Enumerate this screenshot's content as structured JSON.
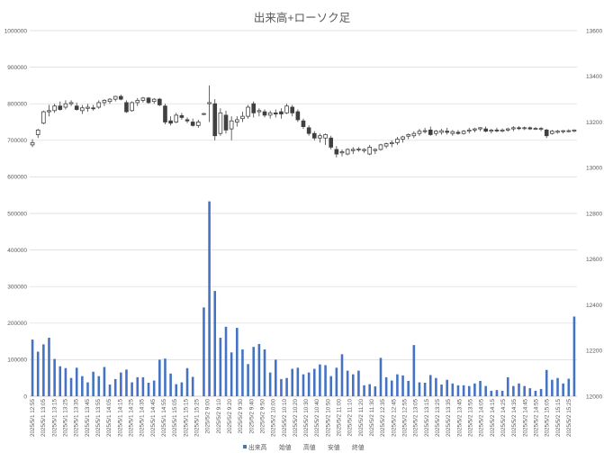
{
  "chart_data": {
    "type": "bar+candlestick",
    "title": "出来高+ローソク足",
    "left_axis": {
      "min": 0,
      "max": 1000000,
      "step": 100000,
      "ticks": [
        "0",
        "100000",
        "200000",
        "300000",
        "400000",
        "500000",
        "600000",
        "700000",
        "800000",
        "900000",
        "1000000"
      ]
    },
    "right_axis": {
      "min": 12000,
      "max": 13600,
      "step": 200,
      "ticks": [
        "12000",
        "12200",
        "12400",
        "12600",
        "12800",
        "13000",
        "13200",
        "13400",
        "13600"
      ]
    },
    "grid": true,
    "legend_position": "bottom",
    "legend": [
      "出来高",
      "始値",
      "高値",
      "安値",
      "終値"
    ],
    "colors": {
      "volume": "#4472C4",
      "candle": "#404040",
      "grid": "#D9D9D9",
      "text": "#595959"
    },
    "x_labels": [
      "2025/5/1 12:55",
      "2025/5/1 13:05",
      "2025/5/1 13:15",
      "2025/5/1 13:25",
      "2025/5/1 13:35",
      "2025/5/1 13:45",
      "2025/5/1 13:55",
      "2025/5/1 14:05",
      "2025/5/1 14:15",
      "2025/5/1 14:25",
      "2025/5/1 14:35",
      "2025/5/1 14:45",
      "2025/5/1 14:55",
      "2025/5/1 15:05",
      "2025/5/1 15:15",
      "2025/5/1 15:25",
      "2025/5/2 9:00",
      "2025/5/2 9:10",
      "2025/5/2 9:20",
      "2025/5/2 9:30",
      "2025/5/2 9:40",
      "2025/5/2 9:50",
      "2025/5/2 10:00",
      "2025/5/2 10:10",
      "2025/5/2 10:20",
      "2025/5/2 10:30",
      "2025/5/2 10:40",
      "2025/5/2 10:50",
      "2025/5/2 11:00",
      "2025/5/2 11:10",
      "2025/5/2 11:20",
      "2025/5/2 11:30",
      "2025/5/2 12:35",
      "2025/5/2 12:45",
      "2025/5/2 12:55",
      "2025/5/2 13:05",
      "2025/5/2 13:15",
      "2025/5/2 13:25",
      "2025/5/2 13:35",
      "2025/5/2 13:45",
      "2025/5/2 13:55",
      "2025/5/2 14:05",
      "2025/5/2 14:15",
      "2025/5/2 14:25",
      "2025/5/2 14:35",
      "2025/5/2 14:45",
      "2025/5/2 14:55",
      "2025/5/2 15:05",
      "2025/5/2 15:15",
      "2025/5/2 15:25"
    ],
    "volume": [
      155000,
      122000,
      142000,
      160000,
      102000,
      82000,
      77000,
      50000,
      78000,
      55000,
      38000,
      67000,
      55000,
      80000,
      32000,
      47000,
      65000,
      73000,
      38000,
      52000,
      52000,
      37000,
      43000,
      100000,
      103000,
      62000,
      33000,
      38000,
      77000,
      53000,
      0,
      243000,
      533000,
      288000,
      160000,
      190000,
      120000,
      187000,
      128000,
      88000,
      135000,
      143000,
      128000,
      65000,
      100000,
      47000,
      50000,
      75000,
      78000,
      60000,
      65000,
      75000,
      87000,
      85000,
      55000,
      78000,
      115000,
      70000,
      60000,
      70000,
      30000,
      33000,
      27000,
      105000,
      52000,
      43000,
      60000,
      57000,
      42000,
      140000,
      38000,
      37000,
      58000,
      50000,
      32000,
      45000,
      35000,
      30000,
      30000,
      28000,
      35000,
      42000,
      28000,
      15000,
      17000,
      15000,
      52000,
      28000,
      35000,
      28000,
      22000,
      15000,
      20000,
      72000,
      45000,
      50000,
      35000,
      48000,
      218000
    ],
    "candles": [
      {
        "o": 13100,
        "h": 13125,
        "l": 13090,
        "c": 13110
      },
      {
        "o": 13145,
        "h": 13170,
        "l": 13130,
        "c": 13165
      },
      {
        "o": 13195,
        "h": 13250,
        "l": 13190,
        "c": 13245
      },
      {
        "o": 13245,
        "h": 13275,
        "l": 13225,
        "c": 13250
      },
      {
        "o": 13250,
        "h": 13280,
        "l": 13240,
        "c": 13270
      },
      {
        "o": 13270,
        "h": 13290,
        "l": 13250,
        "c": 13255
      },
      {
        "o": 13265,
        "h": 13295,
        "l": 13255,
        "c": 13280
      },
      {
        "o": 13280,
        "h": 13295,
        "l": 13270,
        "c": 13285
      },
      {
        "o": 13270,
        "h": 13285,
        "l": 13250,
        "c": 13255
      },
      {
        "o": 13250,
        "h": 13275,
        "l": 13235,
        "c": 13262
      },
      {
        "o": 13260,
        "h": 13280,
        "l": 13245,
        "c": 13265
      },
      {
        "o": 13262,
        "h": 13275,
        "l": 13250,
        "c": 13258
      },
      {
        "o": 13265,
        "h": 13295,
        "l": 13258,
        "c": 13285
      },
      {
        "o": 13285,
        "h": 13300,
        "l": 13270,
        "c": 13295
      },
      {
        "o": 13290,
        "h": 13305,
        "l": 13280,
        "c": 13300
      },
      {
        "o": 13300,
        "h": 13315,
        "l": 13290,
        "c": 13312
      },
      {
        "o": 13312,
        "h": 13320,
        "l": 13295,
        "c": 13300
      },
      {
        "o": 13285,
        "h": 13295,
        "l": 13240,
        "c": 13245
      },
      {
        "o": 13250,
        "h": 13290,
        "l": 13245,
        "c": 13285
      },
      {
        "o": 13285,
        "h": 13305,
        "l": 13270,
        "c": 13295
      },
      {
        "o": 13295,
        "h": 13310,
        "l": 13285,
        "c": 13305
      },
      {
        "o": 13305,
        "h": 13310,
        "l": 13280,
        "c": 13285
      },
      {
        "o": 13290,
        "h": 13305,
        "l": 13280,
        "c": 13300
      },
      {
        "o": 13300,
        "h": 13305,
        "l": 13270,
        "c": 13275
      },
      {
        "o": 13270,
        "h": 13280,
        "l": 13190,
        "c": 13200
      },
      {
        "o": 13205,
        "h": 13225,
        "l": 13185,
        "c": 13195
      },
      {
        "o": 13200,
        "h": 13240,
        "l": 13195,
        "c": 13230
      },
      {
        "o": 13228,
        "h": 13240,
        "l": 13210,
        "c": 13220
      },
      {
        "o": 13210,
        "h": 13220,
        "l": 13195,
        "c": 13205
      },
      {
        "o": 13200,
        "h": 13215,
        "l": 13180,
        "c": 13185
      },
      {
        "o": 13185,
        "h": 13210,
        "l": 13175,
        "c": 13200
      },
      {
        "o": 13235,
        "h": 13240,
        "l": 13230,
        "c": 13237
      },
      {
        "o": 13280,
        "h": 13360,
        "l": 13200,
        "c": 13285
      },
      {
        "o": 13280,
        "h": 13300,
        "l": 13120,
        "c": 13140
      },
      {
        "o": 13150,
        "h": 13260,
        "l": 13140,
        "c": 13240
      },
      {
        "o": 13230,
        "h": 13250,
        "l": 13150,
        "c": 13165
      },
      {
        "o": 13170,
        "h": 13225,
        "l": 13120,
        "c": 13205
      },
      {
        "o": 13200,
        "h": 13225,
        "l": 13180,
        "c": 13210
      },
      {
        "o": 13215,
        "h": 13245,
        "l": 13200,
        "c": 13225
      },
      {
        "o": 13225,
        "h": 13275,
        "l": 13215,
        "c": 13265
      },
      {
        "o": 13280,
        "h": 13290,
        "l": 13220,
        "c": 13240
      },
      {
        "o": 13245,
        "h": 13260,
        "l": 13225,
        "c": 13250
      },
      {
        "o": 13245,
        "h": 13255,
        "l": 13220,
        "c": 13230
      },
      {
        "o": 13230,
        "h": 13250,
        "l": 13215,
        "c": 13240
      },
      {
        "o": 13240,
        "h": 13255,
        "l": 13220,
        "c": 13235
      },
      {
        "o": 13245,
        "h": 13260,
        "l": 13215,
        "c": 13235
      },
      {
        "o": 13240,
        "h": 13280,
        "l": 13235,
        "c": 13270
      },
      {
        "o": 13265,
        "h": 13275,
        "l": 13225,
        "c": 13240
      },
      {
        "o": 13245,
        "h": 13255,
        "l": 13200,
        "c": 13210
      },
      {
        "o": 13205,
        "h": 13215,
        "l": 13170,
        "c": 13180
      },
      {
        "o": 13175,
        "h": 13185,
        "l": 13140,
        "c": 13150
      },
      {
        "o": 13150,
        "h": 13160,
        "l": 13120,
        "c": 13130
      },
      {
        "o": 13130,
        "h": 13150,
        "l": 13110,
        "c": 13140
      },
      {
        "o": 13130,
        "h": 13150,
        "l": 13100,
        "c": 13145
      },
      {
        "o": 13130,
        "h": 13140,
        "l": 13080,
        "c": 13090
      },
      {
        "o": 13080,
        "h": 13095,
        "l": 13045,
        "c": 13060
      },
      {
        "o": 13065,
        "h": 13080,
        "l": 13050,
        "c": 13070
      },
      {
        "o": 13060,
        "h": 13085,
        "l": 13055,
        "c": 13080
      },
      {
        "o": 13075,
        "h": 13090,
        "l": 13060,
        "c": 13080
      },
      {
        "o": 13080,
        "h": 13090,
        "l": 13070,
        "c": 13082
      },
      {
        "o": 13075,
        "h": 13085,
        "l": 13065,
        "c": 13080
      },
      {
        "o": 13060,
        "h": 13100,
        "l": 13055,
        "c": 13090
      },
      {
        "o": 13075,
        "h": 13085,
        "l": 13060,
        "c": 13080
      },
      {
        "o": 13080,
        "h": 13105,
        "l": 13075,
        "c": 13100
      },
      {
        "o": 13095,
        "h": 13110,
        "l": 13085,
        "c": 13105
      },
      {
        "o": 13105,
        "h": 13120,
        "l": 13090,
        "c": 13110
      },
      {
        "o": 13110,
        "h": 13135,
        "l": 13100,
        "c": 13125
      },
      {
        "o": 13125,
        "h": 13140,
        "l": 13110,
        "c": 13135
      },
      {
        "o": 13138,
        "h": 13150,
        "l": 13125,
        "c": 13145
      },
      {
        "o": 13140,
        "h": 13160,
        "l": 13130,
        "c": 13150
      },
      {
        "o": 13150,
        "h": 13170,
        "l": 13140,
        "c": 13160
      },
      {
        "o": 13160,
        "h": 13175,
        "l": 13150,
        "c": 13162
      },
      {
        "o": 13165,
        "h": 13180,
        "l": 13140,
        "c": 13145
      },
      {
        "o": 13150,
        "h": 13165,
        "l": 13140,
        "c": 13160
      },
      {
        "o": 13155,
        "h": 13170,
        "l": 13145,
        "c": 13162
      },
      {
        "o": 13160,
        "h": 13175,
        "l": 13145,
        "c": 13155
      },
      {
        "o": 13150,
        "h": 13165,
        "l": 13140,
        "c": 13158
      },
      {
        "o": 13155,
        "h": 13165,
        "l": 13145,
        "c": 13150
      },
      {
        "o": 13150,
        "h": 13165,
        "l": 13145,
        "c": 13160
      },
      {
        "o": 13160,
        "h": 13175,
        "l": 13150,
        "c": 13165
      },
      {
        "o": 13165,
        "h": 13175,
        "l": 13155,
        "c": 13170
      },
      {
        "o": 13170,
        "h": 13178,
        "l": 13160,
        "c": 13175
      },
      {
        "o": 13170,
        "h": 13180,
        "l": 13155,
        "c": 13160
      },
      {
        "o": 13160,
        "h": 13170,
        "l": 13150,
        "c": 13165
      },
      {
        "o": 13165,
        "h": 13175,
        "l": 13155,
        "c": 13162
      },
      {
        "o": 13160,
        "h": 13172,
        "l": 13155,
        "c": 13165
      },
      {
        "o": 13165,
        "h": 13175,
        "l": 13158,
        "c": 13170
      },
      {
        "o": 13170,
        "h": 13182,
        "l": 13160,
        "c": 13175
      },
      {
        "o": 13175,
        "h": 13182,
        "l": 13165,
        "c": 13172
      },
      {
        "o": 13172,
        "h": 13180,
        "l": 13165,
        "c": 13175
      },
      {
        "o": 13175,
        "h": 13180,
        "l": 13165,
        "c": 13170
      },
      {
        "o": 13170,
        "h": 13178,
        "l": 13165,
        "c": 13172
      },
      {
        "o": 13168,
        "h": 13178,
        "l": 13160,
        "c": 13172
      },
      {
        "o": 13165,
        "h": 13170,
        "l": 13130,
        "c": 13140
      },
      {
        "o": 13150,
        "h": 13165,
        "l": 13145,
        "c": 13160
      },
      {
        "o": 13155,
        "h": 13165,
        "l": 13150,
        "c": 13160
      },
      {
        "o": 13158,
        "h": 13165,
        "l": 13150,
        "c": 13162
      },
      {
        "o": 13160,
        "h": 13168,
        "l": 13155,
        "c": 13162
      },
      {
        "o": 13160,
        "h": 13168,
        "l": 13155,
        "c": 13165
      }
    ]
  }
}
